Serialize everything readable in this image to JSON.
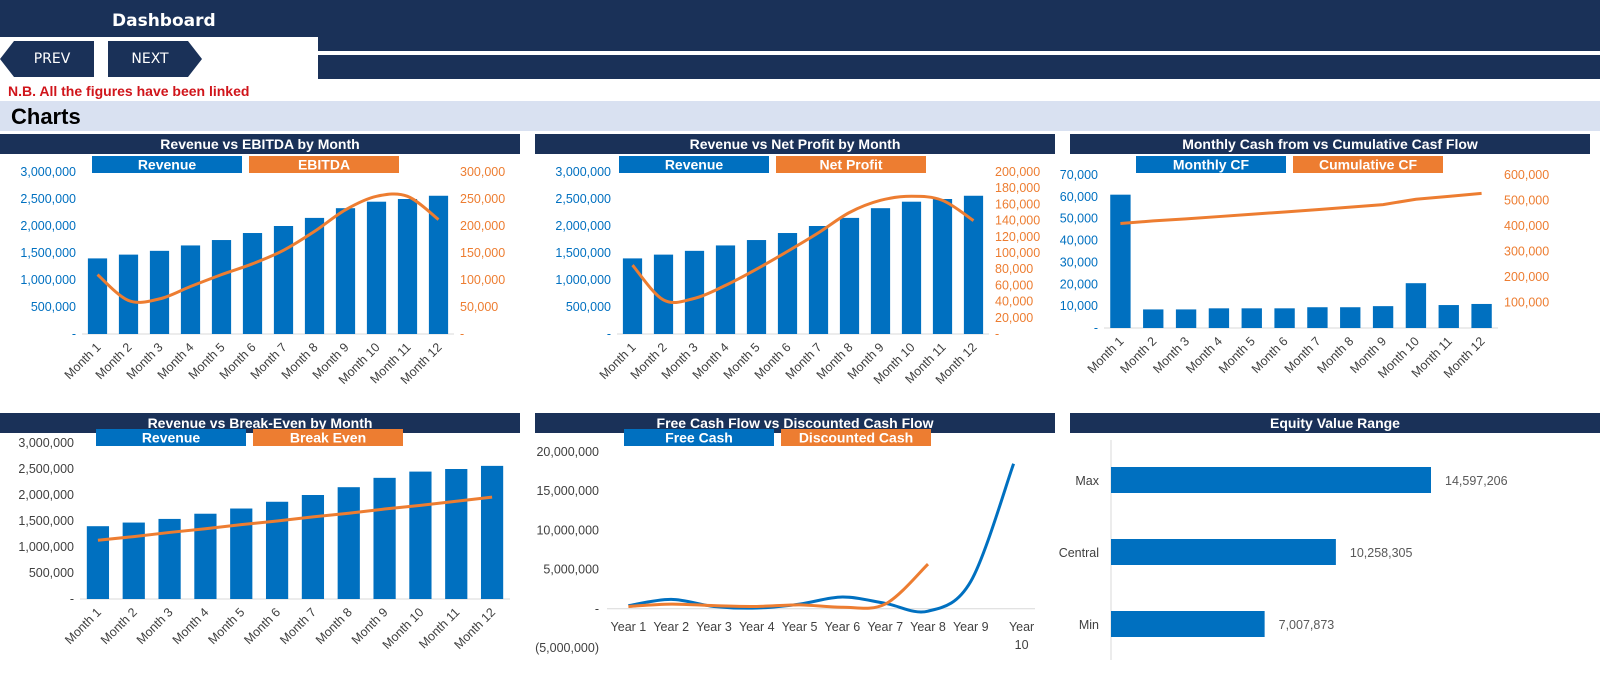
{
  "header": {
    "title": "Dashboard"
  },
  "nav": {
    "prev_label": "PREV",
    "next_label": "NEXT"
  },
  "note": "N.B. All the figures have been linked",
  "section": {
    "title": "Charts"
  },
  "colors": {
    "navy": "#1a3158",
    "blue": "#0070c0",
    "orange": "#ed7d31",
    "note_red": "#d0151b",
    "section_bg": "#d9e1f1"
  },
  "chart_data": [
    {
      "id": "rev-ebitda",
      "type": "bar+line",
      "title": "Revenue vs EBITDA by Month",
      "categories": [
        "Month 1",
        "Month 2",
        "Month 3",
        "Month 4",
        "Month 5",
        "Month 6",
        "Month 7",
        "Month 8",
        "Month 9",
        "Month 10",
        "Month 11",
        "Month 12"
      ],
      "series": [
        {
          "name": "Revenue",
          "type": "bar",
          "axis": "left",
          "color": "#0070c0",
          "values": [
            1400000,
            1470000,
            1540000,
            1640000,
            1740000,
            1870000,
            2000000,
            2150000,
            2330000,
            2450000,
            2500000,
            2560000
          ]
        },
        {
          "name": "EBITDA",
          "type": "line",
          "axis": "right",
          "color": "#ed7d31",
          "values": [
            110000,
            62000,
            65000,
            88000,
            110000,
            130000,
            155000,
            190000,
            230000,
            255000,
            255000,
            212000
          ]
        }
      ],
      "left_axis": {
        "ticks": [
          "-",
          "500,000",
          "1,000,000",
          "1,500,000",
          "2,000,000",
          "2,500,000",
          "3,000,000"
        ],
        "max": 3000000
      },
      "right_axis": {
        "ticks": [
          "-",
          "50,000",
          "100,000",
          "150,000",
          "200,000",
          "250,000",
          "300,000"
        ],
        "max": 300000
      }
    },
    {
      "id": "rev-netprofit",
      "type": "bar+line",
      "title": "Revenue vs Net Profit by Month",
      "categories": [
        "Month 1",
        "Month 2",
        "Month 3",
        "Month 4",
        "Month 5",
        "Month 6",
        "Month 7",
        "Month 8",
        "Month 9",
        "Month 10",
        "Month 11",
        "Month 12"
      ],
      "series": [
        {
          "name": "Revenue",
          "type": "bar",
          "axis": "left",
          "color": "#0070c0",
          "values": [
            1400000,
            1470000,
            1540000,
            1640000,
            1740000,
            1870000,
            2000000,
            2150000,
            2330000,
            2450000,
            2500000,
            2560000
          ]
        },
        {
          "name": "Net Profit",
          "type": "line",
          "axis": "right",
          "color": "#ed7d31",
          "values": [
            85000,
            42000,
            44000,
            60000,
            80000,
            102000,
            125000,
            150000,
            165000,
            170000,
            165000,
            140000
          ]
        }
      ],
      "left_axis": {
        "ticks": [
          "-",
          "500,000",
          "1,000,000",
          "1,500,000",
          "2,000,000",
          "2,500,000",
          "3,000,000"
        ],
        "max": 3000000
      },
      "right_axis": {
        "ticks": [
          "-",
          "20,000",
          "40,000",
          "60,000",
          "80,000",
          "100,000",
          "120,000",
          "140,000",
          "160,000",
          "180,000",
          "200,000"
        ],
        "max": 200000
      }
    },
    {
      "id": "monthly-cf",
      "type": "bar+line",
      "title": "Monthly Cash from vs Cumulative Casf Flow",
      "categories": [
        "Month 1",
        "Month 2",
        "Month 3",
        "Month 4",
        "Month 5",
        "Month 6",
        "Month 7",
        "Month 8",
        "Month 9",
        "Month 10",
        "Month 11",
        "Month 12"
      ],
      "series": [
        {
          "name": "Monthly CF",
          "type": "bar",
          "axis": "left",
          "color": "#0070c0",
          "values": [
            61000,
            8500,
            8500,
            9000,
            9000,
            9000,
            9500,
            9500,
            10000,
            20500,
            10500,
            11000
          ]
        },
        {
          "name": "Cumulative CF",
          "type": "line",
          "axis": "right",
          "color": "#ed7d31",
          "values": [
            410000,
            420000,
            428000,
            437000,
            446000,
            455000,
            464000,
            474000,
            484000,
            505000,
            516000,
            528000
          ]
        }
      ],
      "left_axis": {
        "ticks": [
          "-",
          "10,000",
          "20,000",
          "30,000",
          "40,000",
          "50,000",
          "60,000",
          "70,000"
        ],
        "max": 70000
      },
      "right_axis": {
        "ticks": [
          "",
          "100,000",
          "200,000",
          "300,000",
          "400,000",
          "500,000",
          "600,000"
        ],
        "max": 600000
      }
    },
    {
      "id": "rev-breakeven",
      "type": "bar+line",
      "title": "Revenue vs Break-Even by Month",
      "categories": [
        "Month 1",
        "Month 2",
        "Month 3",
        "Month 4",
        "Month 5",
        "Month 6",
        "Month 7",
        "Month 8",
        "Month 9",
        "Month 10",
        "Month 11",
        "Month 12"
      ],
      "series": [
        {
          "name": "Revenue",
          "type": "bar",
          "axis": "left",
          "color": "#0070c0",
          "values": [
            1400000,
            1470000,
            1540000,
            1640000,
            1740000,
            1870000,
            2000000,
            2150000,
            2330000,
            2450000,
            2500000,
            2560000
          ]
        },
        {
          "name": "Break Even",
          "type": "line",
          "axis": "left",
          "color": "#ed7d31",
          "values": [
            1130000,
            1200000,
            1280000,
            1350000,
            1430000,
            1500000,
            1580000,
            1650000,
            1730000,
            1800000,
            1880000,
            1960000
          ]
        }
      ],
      "left_axis": {
        "ticks": [
          "-",
          "500,000",
          "1,000,000",
          "1,500,000",
          "2,000,000",
          "2,500,000",
          "3,000,000"
        ],
        "max": 3000000
      }
    },
    {
      "id": "fcf-dcf",
      "type": "line",
      "title": "Free Cash Flow vs Discounted Cash Flow",
      "categories": [
        "Year 1",
        "Year 2",
        "Year 3",
        "Year 4",
        "Year 5",
        "Year 6",
        "Year 7",
        "Year 8",
        "Year 9",
        "Year 10"
      ],
      "series": [
        {
          "name": "Free Cash",
          "color": "#0070c0",
          "values": [
            400000,
            1200000,
            300000,
            100000,
            600000,
            1500000,
            700000,
            -300000,
            3500000,
            18500000
          ]
        },
        {
          "name": "Discounted Cash",
          "color": "#ed7d31",
          "values": [
            300000,
            600000,
            400000,
            300000,
            500000,
            200000,
            600000,
            5700000,
            null,
            null
          ]
        }
      ],
      "left_axis": {
        "ticks": [
          "(5,000,000)",
          "-",
          "5,000,000",
          "10,000,000",
          "15,000,000",
          "20,000,000"
        ],
        "min": -5000000,
        "max": 20000000
      }
    },
    {
      "id": "equity-range",
      "type": "bar-horizontal",
      "title": "Equity Value Range",
      "categories": [
        "Max",
        "Central",
        "Min"
      ],
      "values": [
        14597206,
        10258305,
        7007873
      ],
      "labels": [
        "14,597,206",
        "10,258,305",
        "7,007,873"
      ],
      "color": "#0070c0"
    }
  ]
}
